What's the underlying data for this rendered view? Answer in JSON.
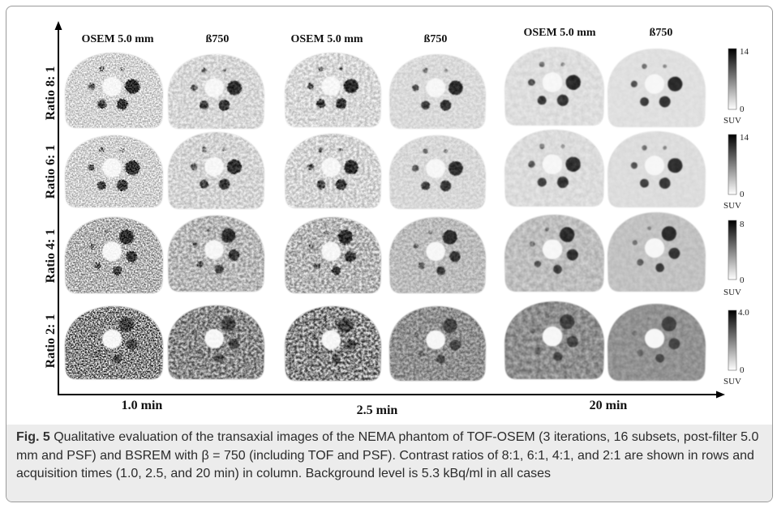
{
  "figure": {
    "column_groups": [
      {
        "methods": [
          "OSEM 5.0 mm",
          "ß750"
        ],
        "time": "1.0 min"
      },
      {
        "methods": [
          "OSEM 5.0 mm",
          "ß750"
        ],
        "time": "2.5 min"
      },
      {
        "methods": [
          "OSEM 5.0 mm",
          "ß750"
        ],
        "time": "20 min"
      }
    ],
    "rows": [
      {
        "label": "Ratio 8: 1",
        "colorbar": {
          "max": "14",
          "min": "0",
          "unit": "SUV"
        },
        "tones": [
          "#d3d3d3",
          "#d7d7d7",
          "#d8d8d8",
          "#dadada",
          "#dedede",
          "#e0e0e0"
        ],
        "sphere": "#2a2a2a"
      },
      {
        "label": "Ratio 6: 1",
        "colorbar": {
          "max": "14",
          "min": "0",
          "unit": "SUV"
        },
        "tones": [
          "#d0d0d0",
          "#d4d4d4",
          "#d4d4d4",
          "#d8d8d8",
          "#dcdcdc",
          "#dddddd"
        ],
        "sphere": "#2e2e2e"
      },
      {
        "label": "Ratio 4: 1",
        "colorbar": {
          "max": "8",
          "min": "0",
          "unit": "SUV"
        },
        "tones": [
          "#b4b4b4",
          "#b8b8b8",
          "#b6b6b6",
          "#bcbcbc",
          "#bebebe",
          "#c2c2c2"
        ],
        "sphere": "#2c2c2c"
      },
      {
        "label": "Ratio 2: 1",
        "colorbar": {
          "max": "4.0",
          "min": "0",
          "unit": "SUV"
        },
        "tones": [
          "#8a8a8a",
          "#8c8c8c",
          "#8c8c8c",
          "#909090",
          "#8e8e8e",
          "#929292"
        ],
        "sphere": "#404040"
      }
    ]
  },
  "caption": {
    "label": "Fig. 5",
    "text": "Qualitative evaluation of the transaxial images of the NEMA phantom of TOF-OSEM (3 iterations, 16 subsets, post-filter 5.0 mm and PSF) and BSREM with β = 750 (including TOF and PSF). Contrast ratios of 8:1, 6:1, 4:1, and 2:1 are shown in rows and acquisition times (1.0, 2.5, and 20 min) in column. Background level is 5.3 kBq/ml in all cases"
  }
}
